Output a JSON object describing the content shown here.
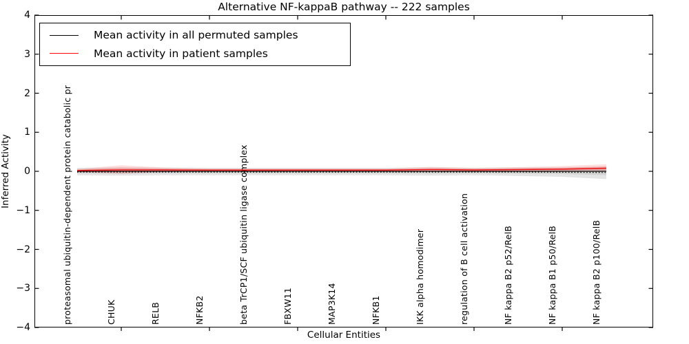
{
  "chart_data": {
    "type": "line",
    "title": "Alternative NF-kappaB pathway -- 222 samples",
    "xlabel": "Cellular Entities",
    "ylabel": "Inferred Activity",
    "ylim": [
      -4,
      4
    ],
    "ytick_values": [
      4,
      3,
      2,
      1,
      0,
      -1,
      -2,
      -3,
      -4
    ],
    "ytick_labels": [
      "4",
      "3",
      "2",
      "1",
      "0",
      "−1",
      "−2",
      "−3",
      "−4"
    ],
    "xtick_entity_indices": [
      1,
      3,
      5,
      7,
      9,
      11
    ],
    "grid": false,
    "legend_position": "upper left",
    "categories": [
      "proteasomal ubiquitin-dependent protein catabolic pr",
      "CHUK",
      "RELB",
      "NFKB2",
      "beta TrCP1/SCF ubiquitin ligase complex",
      "FBXW11",
      "MAP3K14",
      "NFKB1",
      "IKK alpha homodimer",
      "regulation of B cell activation",
      "NF kappa B2 p52/RelB",
      "NF kappa B1 p50/RelB",
      "NF kappa B2 p100/RelB"
    ],
    "series": [
      {
        "name": "Mean activity in all permuted samples",
        "color": "#000000",
        "values": [
          0,
          0,
          0,
          0,
          0,
          0,
          0,
          0,
          0,
          0,
          0,
          0,
          0
        ],
        "dotted_values": [
          -0.02,
          -0.02,
          -0.02,
          -0.02,
          -0.02,
          -0.02,
          -0.02,
          -0.02,
          -0.02,
          -0.02,
          -0.02,
          -0.025,
          -0.03
        ],
        "band_upper": [
          0.09,
          0.1,
          0.095,
          0.09,
          0.09,
          0.09,
          0.09,
          0.09,
          0.1,
          0.09,
          0.1,
          0.1,
          0.12
        ],
        "band_lower": [
          0.1,
          0.11,
          0.1,
          0.1,
          0.1,
          0.1,
          0.1,
          0.1,
          0.11,
          0.1,
          0.12,
          0.14,
          0.2
        ],
        "band_color": "#000000",
        "band_opacity": 0.1
      },
      {
        "name": "Mean activity in patient samples",
        "color": "#ee1111",
        "values": [
          0.02,
          0.035,
          0.035,
          0.03,
          0.03,
          0.03,
          0.03,
          0.03,
          0.045,
          0.035,
          0.045,
          0.055,
          0.08
        ],
        "band_upper": [
          0.04,
          0.12,
          0.06,
          0.04,
          0.04,
          0.04,
          0.04,
          0.04,
          0.07,
          0.05,
          0.06,
          0.08,
          0.1
        ],
        "band_lower": [
          0.04,
          0.1,
          0.05,
          0.03,
          0.03,
          0.03,
          0.03,
          0.03,
          0.05,
          0.04,
          0.05,
          0.06,
          0.08
        ],
        "band_color": "#ff0000",
        "band_opacity": 0.13
      }
    ]
  }
}
